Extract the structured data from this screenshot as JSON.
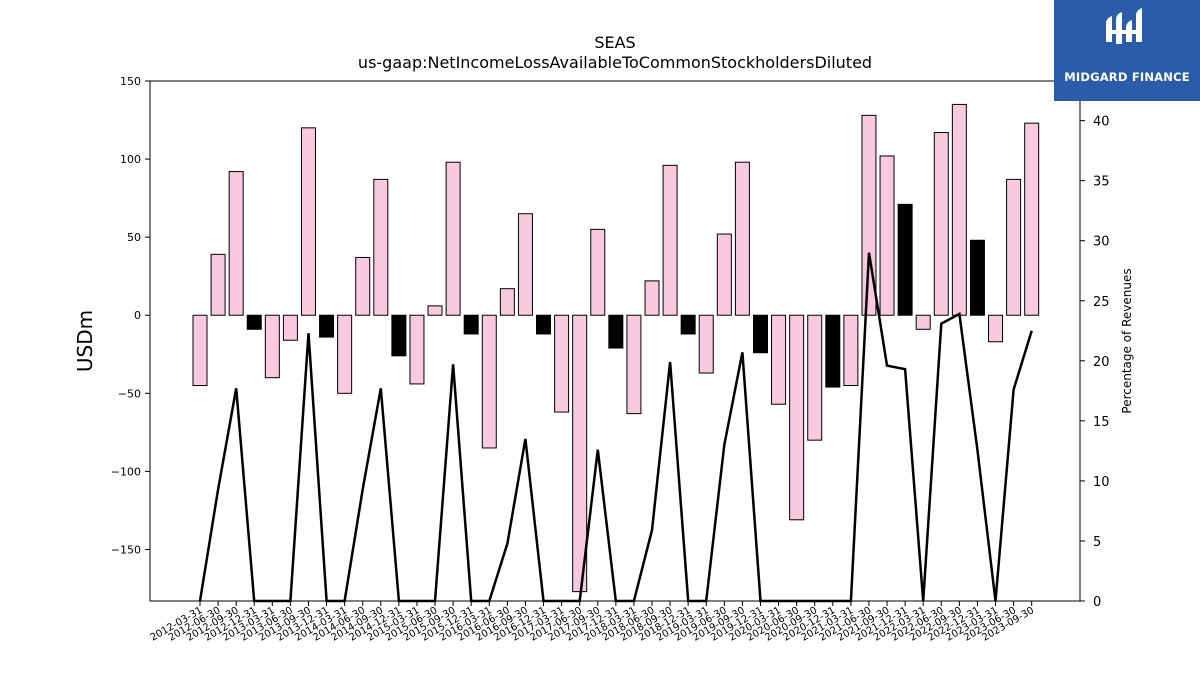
{
  "title": "SEAS",
  "subtitle": "us-gaap:NetIncomeLossAvailableToCommonStockholdersDiluted",
  "logo": {
    "text": "MIDGARD FINANCE",
    "background": "#2a5caa"
  },
  "chart_data": {
    "type": "bar",
    "title": "SEAS",
    "subtitle": "us-gaap:NetIncomeLossAvailableToCommonStockholdersDiluted",
    "ylabel": "USDm",
    "ylabel_right": "Percentage of Revenues",
    "ylim": [
      -183,
      150
    ],
    "ylim_right": [
      0,
      43.3
    ],
    "yticks": [
      -150,
      -100,
      -50,
      0,
      50,
      100,
      150
    ],
    "yticks_right": [
      0,
      5,
      10,
      15,
      20,
      25,
      30,
      35,
      40
    ],
    "grid": false,
    "colors": {
      "positive_quarter": "#f9c9e0",
      "q4_fill": "#000000",
      "edge": "#000000",
      "line": "#000000"
    },
    "categories": [
      "2012-03-31",
      "2012-06-30",
      "2012-09-30",
      "2012-12-31",
      "2013-03-31",
      "2013-06-30",
      "2013-09-30",
      "2013-12-31",
      "2014-03-31",
      "2014-06-30",
      "2014-09-30",
      "2014-12-31",
      "2015-03-31",
      "2015-06-30",
      "2015-09-30",
      "2015-12-31",
      "2016-03-31",
      "2016-06-30",
      "2016-09-30",
      "2016-12-31",
      "2017-03-31",
      "2017-06-30",
      "2017-09-30",
      "2017-12-31",
      "2018-03-31",
      "2018-06-30",
      "2018-09-30",
      "2018-12-31",
      "2019-03-31",
      "2019-06-30",
      "2019-09-30",
      "2019-12-31",
      "2020-03-31",
      "2020-06-30",
      "2020-09-30",
      "2020-12-31",
      "2021-03-31",
      "2021-06-30",
      "2021-09-30",
      "2021-12-31",
      "2022-03-31",
      "2022-06-30",
      "2022-09-30",
      "2022-12-31",
      "2023-03-31",
      "2023-06-30",
      "2023-09-30"
    ],
    "series": [
      {
        "kind": "bar",
        "values": [
          -45,
          39,
          92,
          -9,
          -40,
          -16,
          120,
          -14,
          -50,
          37,
          87,
          -26,
          -44,
          6,
          98,
          -12,
          -85,
          17,
          65,
          -12,
          -62,
          -177,
          55,
          -21,
          -63,
          22,
          96,
          -12,
          -37,
          52,
          98,
          -24,
          -57,
          -131,
          -80,
          -46,
          -45,
          128,
          102,
          71,
          -9,
          117,
          135,
          48,
          -17,
          87,
          123
        ],
        "fill": [
          "pink",
          "pink",
          "pink",
          "black",
          "pink",
          "pink",
          "pink",
          "black",
          "pink",
          "pink",
          "pink",
          "black",
          "pink",
          "pink",
          "pink",
          "black",
          "pink",
          "pink",
          "pink",
          "black",
          "pink",
          "pink",
          "pink",
          "black",
          "pink",
          "pink",
          "pink",
          "black",
          "pink",
          "pink",
          "pink",
          "black",
          "pink",
          "pink",
          "pink",
          "black",
          "pink",
          "pink",
          "pink",
          "black",
          "pink",
          "pink",
          "pink",
          "black",
          "pink",
          "pink",
          "pink"
        ]
      },
      {
        "kind": "line",
        "axis": "right",
        "values": [
          0,
          9.3,
          17.7,
          0,
          0,
          0,
          22.3,
          0,
          0,
          9.3,
          17.7,
          0,
          0,
          0,
          19.7,
          0,
          0,
          4.8,
          13.5,
          0,
          0,
          0,
          12.6,
          0,
          0,
          5.9,
          19.9,
          0,
          0,
          13.0,
          20.7,
          0,
          0,
          0,
          0,
          0,
          0,
          29.0,
          19.6,
          19.3,
          0,
          23.1,
          23.9,
          12.6,
          0,
          17.6,
          22.5
        ]
      }
    ]
  }
}
